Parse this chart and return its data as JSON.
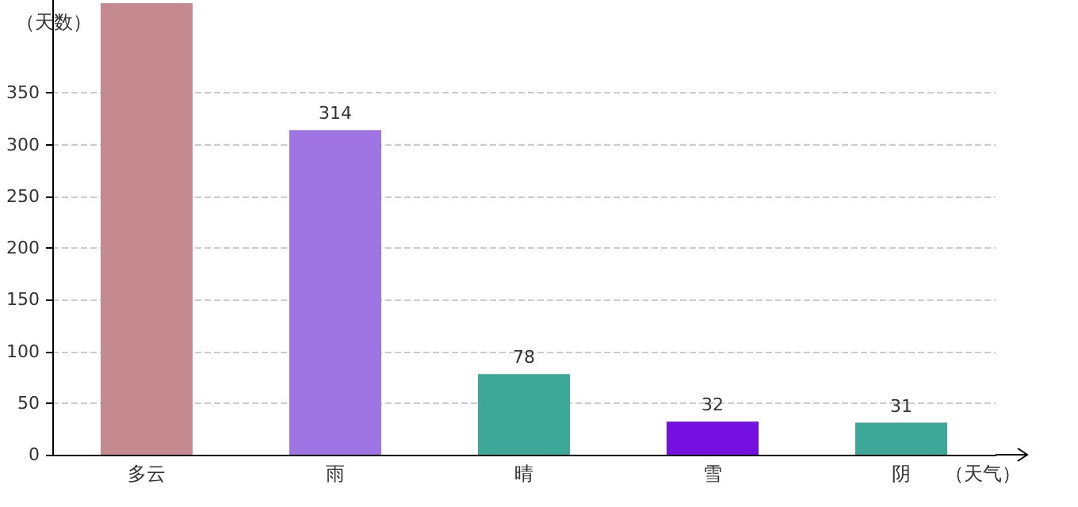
{
  "chart_data": {
    "type": "bar",
    "xlabel": "（天气）",
    "ylabel": "（天数）",
    "categories": [
      "多云",
      "雨",
      "晴",
      "雪",
      "阴"
    ],
    "values": [
      437,
      314,
      78,
      32,
      31
    ],
    "colors": [
      "#c48a8f",
      "#9f75e3",
      "#3ea898",
      "#7411e0",
      "#3ea898"
    ],
    "value_labels": [
      null,
      "314",
      "78",
      "32",
      "31"
    ],
    "ylim": [
      0,
      440
    ],
    "yticks": [
      0,
      50,
      100,
      150,
      200,
      250,
      300,
      350
    ],
    "grid": "y"
  }
}
